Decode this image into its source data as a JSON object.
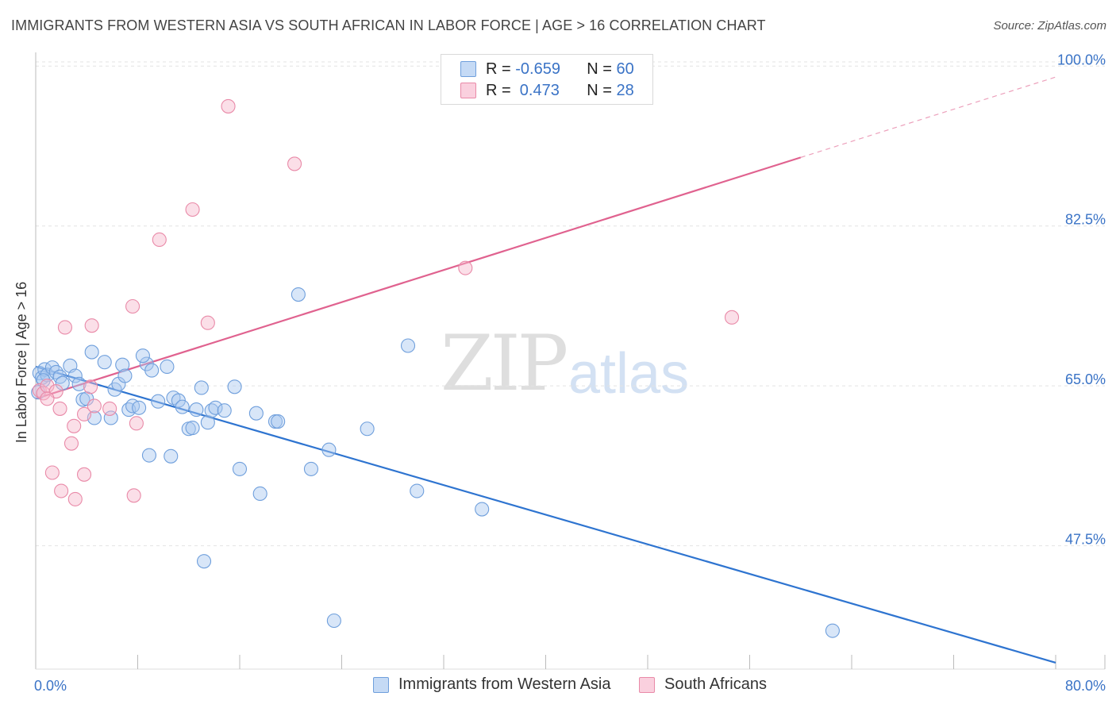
{
  "title": "IMMIGRANTS FROM WESTERN ASIA VS SOUTH AFRICAN IN LABOR FORCE | AGE > 16 CORRELATION CHART",
  "source": "Source: ZipAtlas.com",
  "watermark": {
    "zip": "ZIP",
    "atlas": "atlas"
  },
  "legend": {
    "rows": [
      {
        "r_label": "R = ",
        "r_value": "-0.659",
        "n_label": "N = ",
        "n_value": "60"
      },
      {
        "r_label": "R = ",
        "r_value": " 0.473",
        "n_label": "N = ",
        "n_value": "28"
      }
    ]
  },
  "bottom_legend": {
    "series1": "Immigrants from Western Asia",
    "series2": "South Africans"
  },
  "colors": {
    "blue_fill": "#a9c8f0",
    "blue_stroke": "#6f9fdc",
    "blue_line": "#2e74d0",
    "pink_fill": "#f6b8cc",
    "pink_stroke": "#e98aa8",
    "pink_line": "#e0628f",
    "tick_text": "#3a73c6"
  },
  "chart_data": {
    "type": "scatter",
    "title": "IMMIGRANTS FROM WESTERN ASIA VS SOUTH AFRICAN IN LABOR FORCE | AGE > 16 CORRELATION CHART",
    "xlabel": "",
    "ylabel": "In Labor Force | Age > 16",
    "xlim": [
      0,
      80
    ],
    "ylim": [
      34,
      101.5
    ],
    "x_tick_labels": [
      "0.0%",
      "80.0%"
    ],
    "y_ticks": [
      47.5,
      65.0,
      82.5,
      100.0
    ],
    "y_tick_labels": [
      "47.5%",
      "65.0%",
      "82.5%",
      "100.0%"
    ],
    "grid": true,
    "series": [
      {
        "name": "Immigrants from Western Asia",
        "points": [
          [
            0.3,
            66.4
          ],
          [
            0.5,
            65.9
          ],
          [
            0.7,
            66.8
          ],
          [
            0.9,
            66.2
          ],
          [
            1.3,
            67.0
          ],
          [
            1.6,
            66.5
          ],
          [
            1.9,
            66.0
          ],
          [
            2.1,
            65.3
          ],
          [
            2.7,
            67.2
          ],
          [
            3.1,
            66.1
          ],
          [
            3.4,
            65.2
          ],
          [
            3.7,
            63.5
          ],
          [
            4.0,
            63.6
          ],
          [
            4.4,
            68.7
          ],
          [
            4.6,
            61.5
          ],
          [
            5.4,
            67.6
          ],
          [
            5.9,
            61.5
          ],
          [
            6.2,
            64.6
          ],
          [
            6.5,
            65.2
          ],
          [
            6.8,
            67.3
          ],
          [
            7.0,
            66.1
          ],
          [
            7.3,
            62.4
          ],
          [
            7.6,
            62.8
          ],
          [
            8.1,
            62.6
          ],
          [
            8.7,
            67.4
          ],
          [
            8.4,
            68.3
          ],
          [
            9.1,
            66.7
          ],
          [
            9.6,
            63.3
          ],
          [
            10.3,
            67.1
          ],
          [
            10.6,
            57.3
          ],
          [
            10.8,
            63.7
          ],
          [
            11.2,
            63.4
          ],
          [
            11.5,
            62.7
          ],
          [
            12.0,
            60.3
          ],
          [
            12.3,
            60.4
          ],
          [
            12.6,
            62.4
          ],
          [
            13.0,
            64.8
          ],
          [
            13.5,
            61.0
          ],
          [
            13.8,
            62.3
          ],
          [
            14.1,
            62.6
          ],
          [
            14.8,
            62.3
          ],
          [
            15.6,
            64.9
          ],
          [
            16.0,
            55.9
          ],
          [
            17.3,
            62.0
          ],
          [
            17.6,
            53.2
          ],
          [
            18.8,
            61.1
          ],
          [
            19.0,
            61.1
          ],
          [
            20.6,
            75.0
          ],
          [
            21.6,
            55.9
          ],
          [
            23.0,
            58.0
          ],
          [
            26.0,
            60.3
          ],
          [
            29.2,
            69.4
          ],
          [
            29.9,
            53.5
          ],
          [
            35.0,
            51.5
          ],
          [
            8.9,
            57.4
          ],
          [
            13.2,
            45.8
          ],
          [
            23.4,
            39.3
          ],
          [
            62.5,
            38.2
          ],
          [
            0.2,
            64.3
          ],
          [
            0.6,
            65.6
          ]
        ],
        "trend": {
          "x": [
            0,
            80
          ],
          "y": [
            67.1,
            34.7
          ]
        }
      },
      {
        "name": "South Africans",
        "points": [
          [
            0.3,
            64.5
          ],
          [
            0.6,
            64.2
          ],
          [
            0.9,
            65.0
          ],
          [
            1.6,
            64.4
          ],
          [
            1.9,
            62.5
          ],
          [
            2.3,
            71.4
          ],
          [
            2.8,
            58.7
          ],
          [
            3.0,
            60.6
          ],
          [
            3.1,
            52.6
          ],
          [
            3.8,
            61.9
          ],
          [
            4.3,
            64.9
          ],
          [
            4.4,
            71.6
          ],
          [
            4.6,
            62.8
          ],
          [
            1.3,
            55.5
          ],
          [
            2.0,
            53.5
          ],
          [
            3.8,
            55.3
          ],
          [
            5.8,
            62.5
          ],
          [
            7.7,
            53.0
          ],
          [
            7.9,
            60.9
          ],
          [
            7.6,
            73.7
          ],
          [
            9.7,
            81.0
          ],
          [
            12.3,
            84.3
          ],
          [
            13.5,
            71.9
          ],
          [
            15.1,
            95.6
          ],
          [
            20.3,
            89.3
          ],
          [
            33.7,
            77.9
          ],
          [
            54.6,
            72.5
          ],
          [
            0.9,
            63.6
          ]
        ],
        "trend": {
          "x": [
            0,
            60
          ],
          "y": [
            63.6,
            90.0
          ]
        },
        "trend_dashed": {
          "x": [
            60,
            80
          ],
          "y": [
            90.0,
            98.8
          ]
        }
      }
    ]
  }
}
